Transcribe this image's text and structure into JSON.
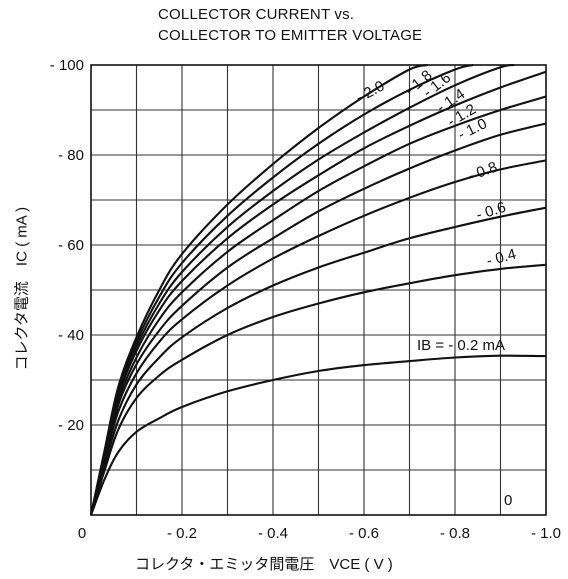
{
  "chart_data": {
    "type": "line",
    "title_line1": "COLLECTOR CURRENT vs.",
    "title_line2": "COLLECTOR TO EMITTER VOLTAGE",
    "ylabel": "コレクタ電流　IC ( mA )",
    "xlabel": "コレクタ・エミッタ間電圧　VCE ( V )",
    "xlim": [
      0,
      -1.0
    ],
    "ylim": [
      0,
      -100
    ],
    "x_ticks": [
      {
        "value": 0,
        "label": "0"
      },
      {
        "value": -0.2,
        "label": "- 0.2"
      },
      {
        "value": -0.4,
        "label": "- 0.4"
      },
      {
        "value": -0.6,
        "label": "- 0.6"
      },
      {
        "value": -0.8,
        "label": "- 0.8"
      },
      {
        "value": -1.0,
        "label": "- 1.0"
      }
    ],
    "y_ticks": [
      {
        "value": -20,
        "label": "- 20"
      },
      {
        "value": -40,
        "label": "- 40"
      },
      {
        "value": -60,
        "label": "- 60"
      },
      {
        "value": -80,
        "label": "- 80"
      },
      {
        "value": -100,
        "label": "- 100"
      }
    ],
    "grid": true,
    "series": [
      {
        "name": "- 0.2 mA",
        "label": "IB = - 0.2 mA",
        "x": [
          0,
          -0.03,
          -0.06,
          -0.1,
          -0.15,
          -0.2,
          -0.3,
          -0.4,
          -0.5,
          -0.6,
          -0.7,
          -0.8,
          -0.9,
          -1.0
        ],
        "y": [
          0,
          -8,
          -14,
          -18.5,
          -21.5,
          -24,
          -27.5,
          -30,
          -32,
          -33.3,
          -34.2,
          -35,
          -35.4,
          -35.3
        ]
      },
      {
        "name": "- 0.4",
        "label": "- 0.4",
        "x": [
          0,
          -0.03,
          -0.06,
          -0.1,
          -0.15,
          -0.2,
          -0.3,
          -0.4,
          -0.5,
          -0.6,
          -0.7,
          -0.8,
          -0.9,
          -1.0
        ],
        "y": [
          0,
          -10,
          -19,
          -26,
          -31,
          -34.5,
          -40,
          -44,
          -47,
          -49.5,
          -51.5,
          -53.3,
          -54.7,
          -55.6
        ]
      },
      {
        "name": "- 0.6",
        "label": "- 0.6",
        "x": [
          0,
          -0.03,
          -0.06,
          -0.1,
          -0.15,
          -0.2,
          -0.3,
          -0.4,
          -0.5,
          -0.6,
          -0.7,
          -0.8,
          -0.9,
          -1.0
        ],
        "y": [
          0,
          -11,
          -21,
          -29,
          -35,
          -39.5,
          -46,
          -51,
          -55,
          -58.3,
          -61.5,
          -64,
          -66.3,
          -68.3
        ]
      },
      {
        "name": "- 0.8",
        "label": "- 0.8",
        "x": [
          0,
          -0.03,
          -0.06,
          -0.1,
          -0.15,
          -0.2,
          -0.3,
          -0.4,
          -0.5,
          -0.6,
          -0.7,
          -0.8,
          -0.9,
          -1.0
        ],
        "y": [
          0,
          -12,
          -23,
          -31.5,
          -38.5,
          -43.5,
          -51,
          -57,
          -62,
          -66.5,
          -70.5,
          -74,
          -76.8,
          -78.8
        ]
      },
      {
        "name": "- 1.0",
        "label": "- 1.0",
        "x": [
          0,
          -0.03,
          -0.06,
          -0.1,
          -0.15,
          -0.2,
          -0.3,
          -0.4,
          -0.5,
          -0.6,
          -0.7,
          -0.8,
          -0.9,
          -1.0
        ],
        "y": [
          0,
          -12.5,
          -24.5,
          -33.5,
          -41,
          -46.5,
          -55,
          -61.5,
          -67.5,
          -72.5,
          -77,
          -81,
          -84.5,
          -87
        ]
      },
      {
        "name": "- 1.2",
        "label": "- 1.2",
        "x": [
          0,
          -0.03,
          -0.06,
          -0.1,
          -0.15,
          -0.2,
          -0.3,
          -0.4,
          -0.5,
          -0.6,
          -0.7,
          -0.8,
          -0.9,
          -1.0
        ],
        "y": [
          0,
          -13,
          -25.5,
          -35,
          -43.5,
          -49.5,
          -58.5,
          -65.5,
          -72,
          -77.5,
          -82.5,
          -86.5,
          -90,
          -93
        ]
      },
      {
        "name": "- 1.4",
        "label": "- 1.4",
        "x": [
          0,
          -0.03,
          -0.06,
          -0.1,
          -0.15,
          -0.2,
          -0.3,
          -0.4,
          -0.5,
          -0.6,
          -0.7,
          -0.8,
          -0.9,
          -1.0
        ],
        "y": [
          0,
          -13.5,
          -26.5,
          -36.5,
          -45.5,
          -52,
          -61.5,
          -69,
          -75.5,
          -81.5,
          -86.5,
          -91,
          -95,
          -98.5
        ]
      },
      {
        "name": "- 1.6",
        "label": "- 1.6",
        "x": [
          0,
          -0.03,
          -0.06,
          -0.1,
          -0.15,
          -0.2,
          -0.3,
          -0.4,
          -0.5,
          -0.6,
          -0.7,
          -0.8,
          -0.9,
          -0.93
        ],
        "y": [
          0,
          -14,
          -27.5,
          -37.5,
          -47,
          -54,
          -64,
          -72,
          -79,
          -85,
          -90.5,
          -95.5,
          -99.5,
          -100
        ]
      },
      {
        "name": "- 1.8",
        "label": "- 1.8",
        "x": [
          0,
          -0.03,
          -0.06,
          -0.1,
          -0.15,
          -0.2,
          -0.3,
          -0.4,
          -0.5,
          -0.6,
          -0.7,
          -0.8,
          -0.84
        ],
        "y": [
          0,
          -14,
          -28,
          -38.5,
          -48.5,
          -56,
          -66.5,
          -75,
          -82.5,
          -89,
          -94.5,
          -99,
          -100
        ]
      },
      {
        "name": "- 2.0",
        "label": "- 2.0",
        "x": [
          0,
          -0.03,
          -0.06,
          -0.1,
          -0.15,
          -0.2,
          -0.3,
          -0.4,
          -0.5,
          -0.6,
          -0.7,
          -0.74
        ],
        "y": [
          0,
          -14.5,
          -28.5,
          -39.5,
          -50,
          -58,
          -69,
          -78,
          -86,
          -93,
          -99,
          -100
        ]
      },
      {
        "name": "0",
        "label": "0",
        "x": [
          0,
          -1.0
        ],
        "y": [
          0,
          0
        ]
      }
    ]
  }
}
